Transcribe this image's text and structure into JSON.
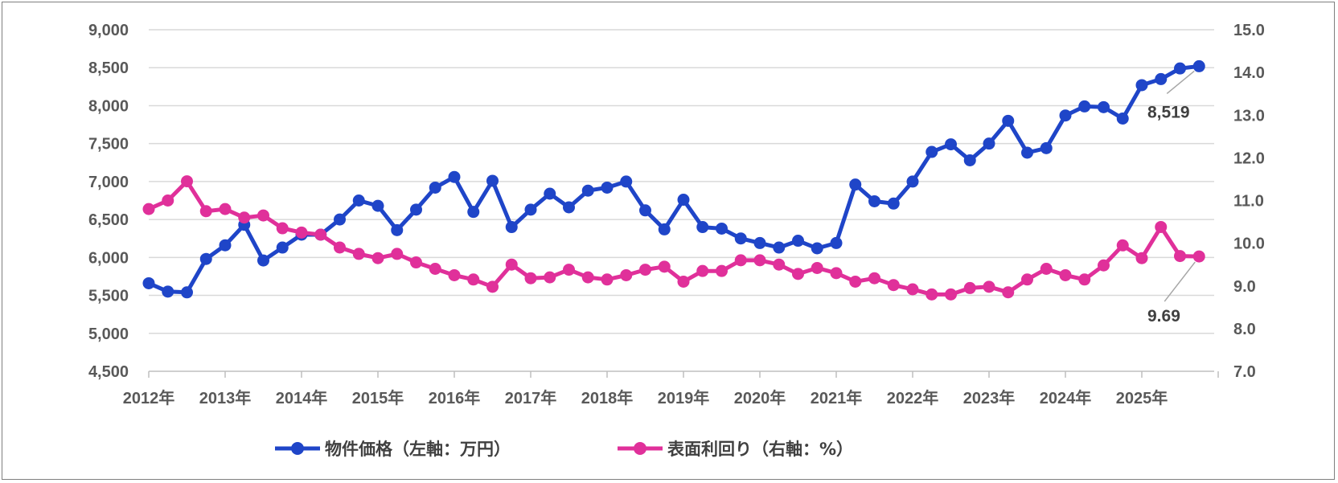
{
  "chart_data": {
    "type": "line",
    "title": "",
    "x_tick_labels": [
      "2012年",
      "2013年",
      "2014年",
      "2015年",
      "2016年",
      "2017年",
      "2018年",
      "2019年",
      "2020年",
      "2021年",
      "2022年",
      "2023年",
      "2024年",
      "2025年"
    ],
    "left_axis": {
      "ylim": [
        4500,
        9000
      ],
      "ticks": [
        4500,
        5000,
        5500,
        6000,
        6500,
        7000,
        7500,
        8000,
        8500,
        9000
      ],
      "tick_labels": [
        "4,500",
        "5,000",
        "5,500",
        "6,000",
        "6,500",
        "7,000",
        "7,500",
        "8,000",
        "8,500",
        "9,000"
      ]
    },
    "right_axis": {
      "ylim": [
        7.0,
        15.0
      ],
      "ticks": [
        7,
        8,
        9,
        10,
        11,
        12,
        13,
        14,
        15
      ],
      "tick_labels": [
        "7.0",
        "8.0",
        "9.0",
        "10.0",
        "11.0",
        "12.0",
        "13.0",
        "14.0",
        "15.0"
      ]
    },
    "quarters_per_year": 4,
    "grid": true,
    "legend_position": "bottom",
    "series": [
      {
        "name": "物件価格（左軸：万円）",
        "axis": "left",
        "color": "#1f45c8",
        "values": [
          5660,
          5550,
          5540,
          5980,
          6160,
          6430,
          5960,
          6130,
          6300,
          6300,
          6500,
          6750,
          6680,
          6360,
          6630,
          6920,
          7060,
          6600,
          7010,
          6400,
          6630,
          6840,
          6660,
          6880,
          6920,
          7000,
          6620,
          6370,
          6760,
          6400,
          6380,
          6250,
          6190,
          6130,
          6220,
          6120,
          6190,
          6960,
          6740,
          6710,
          7000,
          7390,
          7490,
          7280,
          7500,
          7800,
          7380,
          7440,
          7870,
          7990,
          7980,
          7830,
          8270,
          8350,
          8490,
          8519
        ],
        "last_label": "8,519"
      },
      {
        "name": "表面利回り（右軸：%）",
        "axis": "right",
        "color": "#e0309a",
        "values": [
          10.8,
          11.0,
          11.45,
          10.75,
          10.8,
          10.6,
          10.65,
          10.35,
          10.25,
          10.2,
          9.9,
          9.75,
          9.65,
          9.75,
          9.55,
          9.4,
          9.25,
          9.15,
          8.98,
          9.5,
          9.18,
          9.2,
          9.38,
          9.2,
          9.15,
          9.25,
          9.38,
          9.45,
          9.1,
          9.35,
          9.35,
          9.6,
          9.6,
          9.5,
          9.28,
          9.42,
          9.3,
          9.1,
          9.18,
          9.02,
          8.92,
          8.8,
          8.8,
          8.95,
          8.98,
          8.85,
          9.15,
          9.4,
          9.25,
          9.15,
          9.48,
          9.95,
          9.65,
          10.38,
          9.7,
          9.69
        ],
        "last_label": "9.69"
      }
    ]
  }
}
